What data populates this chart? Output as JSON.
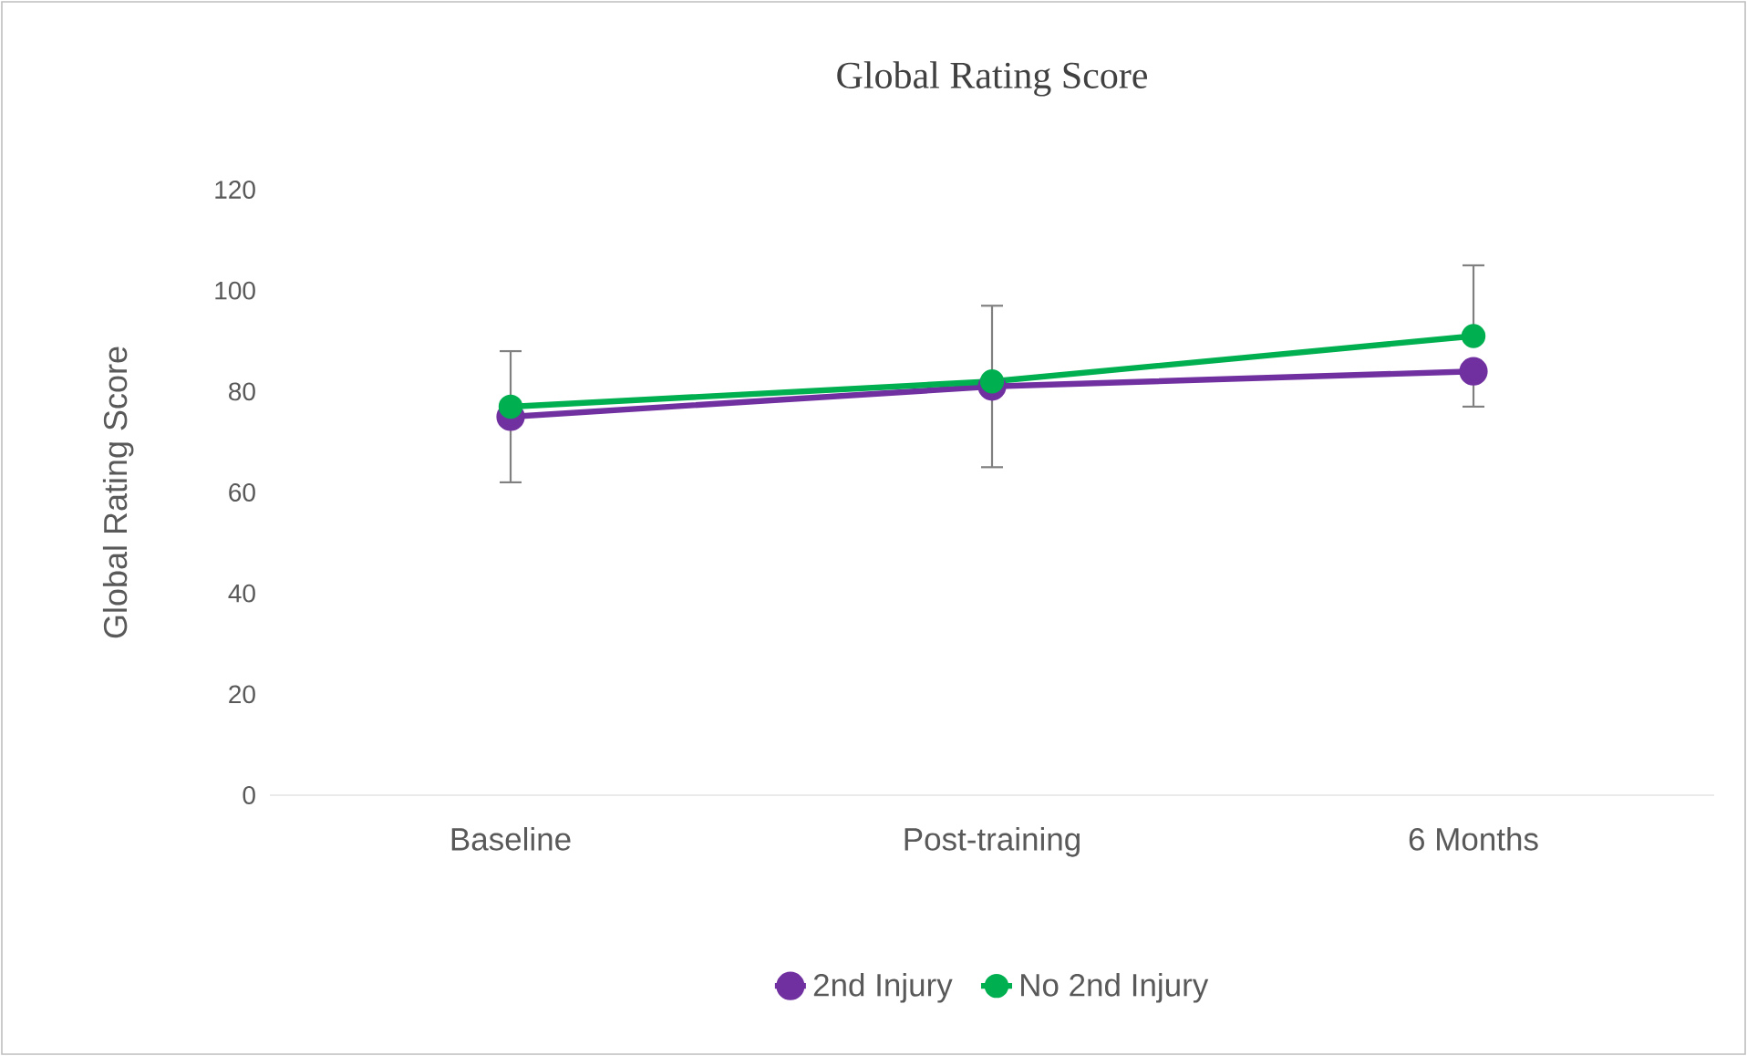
{
  "chart_data": {
    "type": "line",
    "title": "Global Rating Score",
    "ylabel": "Global Rating Score",
    "categories": [
      "Baseline",
      "Post-training",
      "6 Months"
    ],
    "series": [
      {
        "name": "2nd Injury",
        "color": "#7030a0",
        "values": [
          75,
          81,
          84
        ],
        "errors": [
          [
            62,
            75
          ],
          [
            65,
            81
          ],
          [
            77,
            84
          ]
        ]
      },
      {
        "name": "No 2nd Injury",
        "color": "#00b050",
        "values": [
          77,
          82,
          91
        ],
        "errors": [
          [
            77,
            88
          ],
          [
            82,
            97
          ],
          [
            91,
            105
          ]
        ]
      }
    ],
    "ylim": [
      0,
      120
    ],
    "yticks": [
      0,
      20,
      40,
      60,
      80,
      100,
      120
    ],
    "legend": "bottom",
    "marker": "circle",
    "line_style": "solid"
  }
}
